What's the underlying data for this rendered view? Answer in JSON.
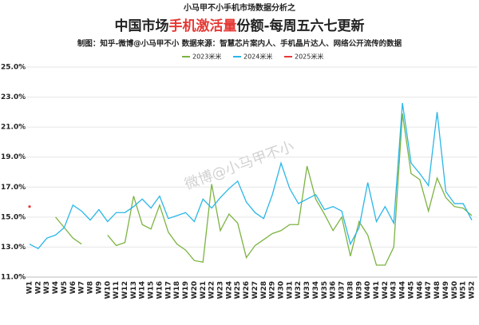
{
  "chart_data": {
    "type": "line",
    "supertitle": "小马甲不小手机市场数据分析之",
    "title": [
      "中国市场",
      "手机激活量",
      "份额-每周五六七更新"
    ],
    "subtitle": "制图：知乎-微博@小马甲不小   数据来源：智慧芯片案内人、手机晶片达人、网络公开流传的数据",
    "watermark": "微博@小马甲不小",
    "categories": [
      "W1",
      "W2",
      "W3",
      "W4",
      "W5",
      "W6",
      "W7",
      "W8",
      "W9",
      "W10",
      "W11",
      "W12",
      "W13",
      "W14",
      "W15",
      "W16",
      "W17",
      "W18",
      "W19",
      "W20",
      "W21",
      "W22",
      "W23",
      "W24",
      "W25",
      "W26",
      "W27",
      "W28",
      "W29",
      "W30",
      "W31",
      "W32",
      "W33",
      "W34",
      "W35",
      "W36",
      "W37",
      "W38",
      "W39",
      "W40",
      "W41",
      "W42",
      "W43",
      "W44",
      "W45",
      "W46",
      "W47",
      "W48",
      "W49",
      "W50",
      "W51",
      "W52"
    ],
    "series": [
      {
        "name": "2023米米",
        "color": "#7cb342",
        "values": [
          null,
          null,
          null,
          15.0,
          14.3,
          13.6,
          13.2,
          null,
          null,
          13.8,
          13.1,
          13.3,
          16.4,
          14.5,
          14.2,
          15.8,
          14.0,
          13.2,
          12.8,
          12.1,
          12.0,
          17.2,
          14.1,
          15.2,
          14.6,
          12.3,
          13.1,
          13.5,
          13.9,
          14.1,
          14.5,
          14.5,
          18.4,
          16.2,
          15.2,
          14.1,
          15.0,
          12.4,
          14.7,
          13.8,
          11.8,
          11.8,
          13.0,
          21.9,
          17.9,
          17.5,
          15.4,
          17.6,
          16.3,
          15.7,
          15.6,
          15.1
        ]
      },
      {
        "name": "2024米米",
        "color": "#29b6e8",
        "values": [
          13.2,
          12.9,
          13.6,
          13.8,
          14.3,
          15.8,
          15.4,
          14.8,
          15.5,
          14.7,
          15.3,
          15.3,
          15.7,
          16.2,
          15.6,
          16.4,
          14.9,
          15.1,
          15.3,
          14.7,
          16.2,
          15.6,
          16.3,
          16.9,
          17.4,
          16.0,
          15.3,
          14.9,
          16.5,
          18.6,
          16.9,
          15.9,
          16.2,
          16.5,
          15.5,
          15.7,
          15.4,
          13.2,
          14.3,
          17.3,
          14.7,
          15.7,
          14.6,
          22.6,
          18.6,
          17.9,
          17.1,
          22.0,
          16.7,
          15.9,
          15.9,
          14.8
        ]
      },
      {
        "name": "2025米米",
        "color": "#e53935",
        "values": [
          15.7,
          null,
          null,
          null,
          null,
          null,
          null,
          null,
          null,
          null,
          null,
          null,
          null,
          null,
          null,
          null,
          null,
          null,
          null,
          null,
          null,
          null,
          null,
          null,
          null,
          null,
          null,
          null,
          null,
          null,
          null,
          null,
          null,
          null,
          null,
          null,
          null,
          null,
          null,
          null,
          null,
          null,
          null,
          null,
          null,
          null,
          null,
          null,
          null,
          null,
          null,
          null
        ]
      }
    ],
    "ylim": [
      11,
      25
    ],
    "yticks": [
      {
        "value": 11,
        "label": "11.0%"
      },
      {
        "value": 13,
        "label": "13.0%"
      },
      {
        "value": 15,
        "label": "15.0%"
      },
      {
        "value": 17,
        "label": "17.0%"
      },
      {
        "value": 19,
        "label": "19.0%"
      },
      {
        "value": 21,
        "label": "21.0%"
      },
      {
        "value": 23,
        "label": "23.0%"
      },
      {
        "value": 25,
        "label": "25.0%"
      }
    ],
    "grid": true
  }
}
